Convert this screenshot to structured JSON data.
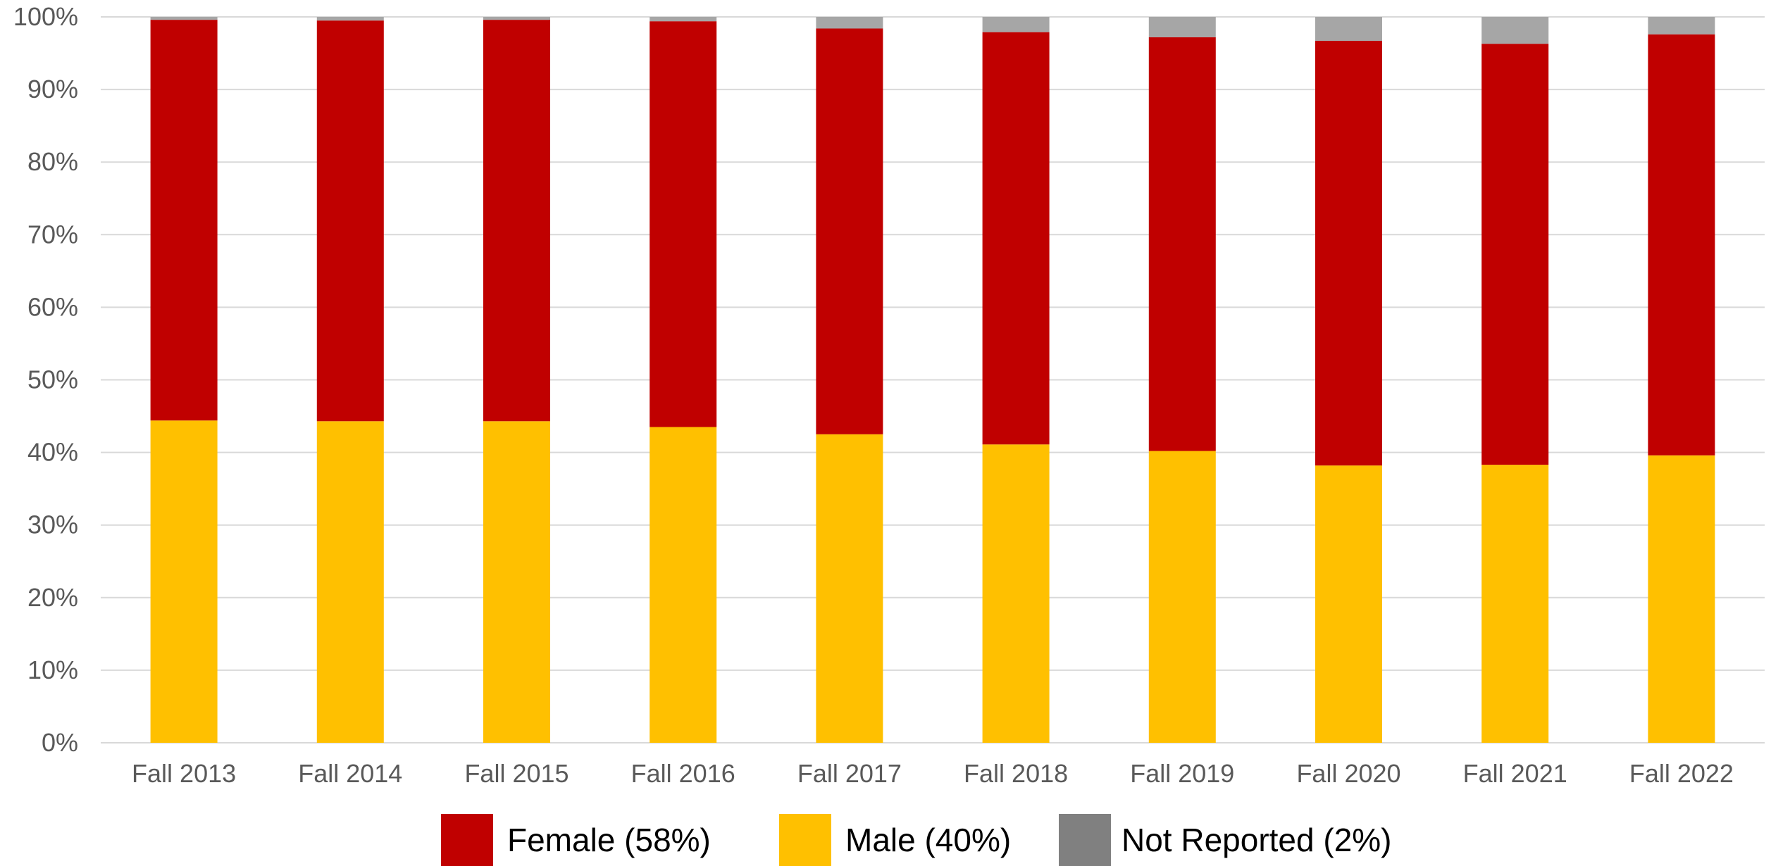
{
  "chart_data": {
    "type": "bar",
    "stacked": true,
    "categories": [
      "Fall 2013",
      "Fall 2014",
      "Fall 2015",
      "Fall 2016",
      "Fall 2017",
      "Fall 2018",
      "Fall 2019",
      "Fall 2020",
      "Fall 2021",
      "Fall 2022"
    ],
    "series": [
      {
        "name": "Male (40%)",
        "color": "#FFC000",
        "values": [
          44.4,
          44.3,
          44.3,
          43.5,
          42.5,
          41.1,
          40.2,
          38.2,
          38.3,
          39.6
        ]
      },
      {
        "name": "Female (58%)",
        "color": "#C00000",
        "values": [
          55.2,
          55.2,
          55.3,
          55.9,
          55.9,
          56.8,
          57.0,
          58.5,
          58.0,
          58.0
        ]
      },
      {
        "name": "Not Reported (2%)",
        "color": "#A6A6A6",
        "legend_color": "#808080",
        "values": [
          0.4,
          0.5,
          0.4,
          0.6,
          1.6,
          2.1,
          2.8,
          3.3,
          3.7,
          2.4
        ]
      }
    ],
    "legend_order": [
      "Female (58%)",
      "Male (40%)",
      "Not Reported (2%)"
    ],
    "y_tick_labels": [
      "0%",
      "10%",
      "20%",
      "30%",
      "40%",
      "50%",
      "60%",
      "70%",
      "80%",
      "90%",
      "100%"
    ],
    "ylim": [
      0,
      100
    ],
    "title": "",
    "xlabel": "",
    "ylabel": "",
    "grid": true,
    "legend_position": "bottom"
  }
}
